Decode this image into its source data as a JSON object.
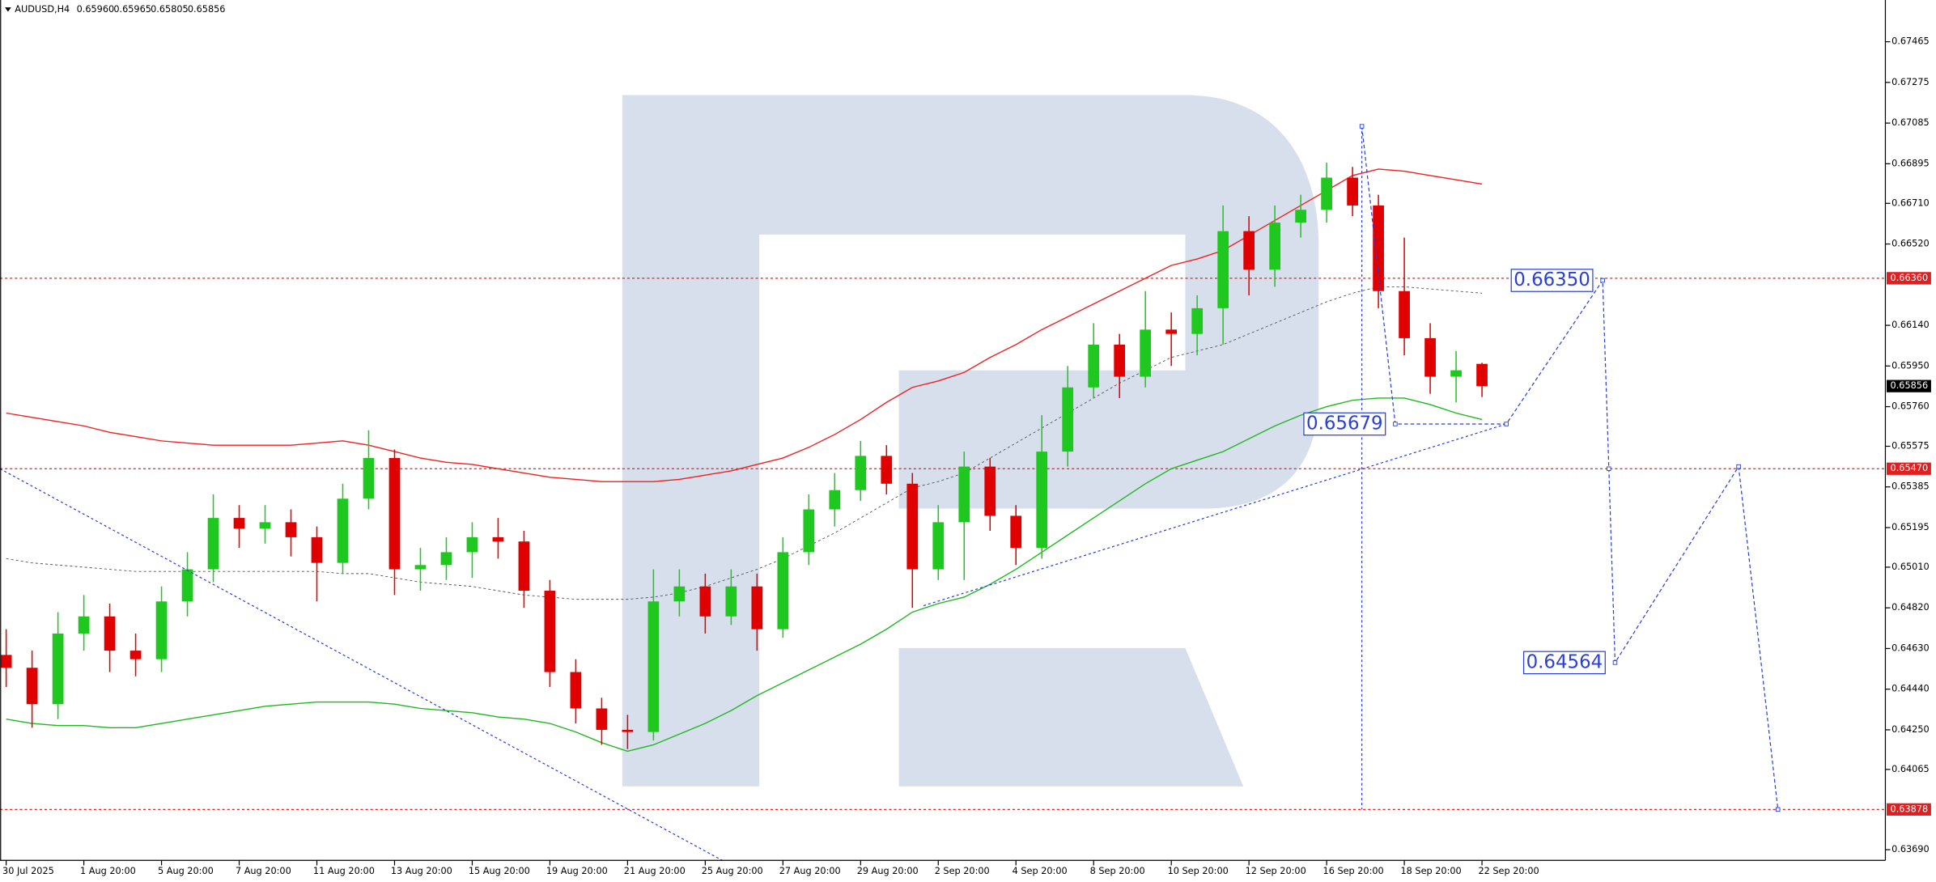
{
  "chart_data": {
    "type": "candlestick",
    "title": "AUDUSD,H4",
    "header_values": [
      "0.65960",
      "0.65965",
      "0.65805",
      "0.65856"
    ],
    "up_color": "#1fc81f",
    "down_color": "#e00000",
    "categories": [
      "30 Jul 2025",
      null,
      null,
      "1 Aug 20:00",
      null,
      null,
      "5 Aug 20:00",
      null,
      null,
      "7 Aug 20:00",
      null,
      null,
      "11 Aug 20:00",
      null,
      null,
      "13 Aug 20:00",
      null,
      null,
      "15 Aug 20:00",
      null,
      null,
      "19 Aug 20:00",
      null,
      null,
      "21 Aug 20:00",
      null,
      null,
      "25 Aug 20:00",
      null,
      null,
      "27 Aug 20:00",
      null,
      null,
      "29 Aug 20:00",
      null,
      null,
      "2 Sep 20:00",
      null,
      null,
      "4 Sep 20:00",
      null,
      null,
      "8 Sep 20:00",
      null,
      null,
      "10 Sep 20:00",
      null,
      null,
      "12 Sep 20:00",
      null,
      null,
      "16 Sep 20:00",
      null,
      null,
      "18 Sep 20:00",
      null,
      null,
      "22 Sep 20:00"
    ],
    "open": [
      0.646,
      0.6454,
      0.6437,
      0.647,
      0.6478,
      0.6462,
      0.6458,
      0.6485,
      0.65,
      0.6524,
      0.6519,
      0.6522,
      0.6515,
      0.6503,
      0.6533,
      0.6552,
      0.65,
      0.6502,
      0.6508,
      0.6515,
      0.6513,
      0.649,
      0.6452,
      0.6435,
      0.6425,
      0.6424,
      0.6485,
      0.6492,
      0.6478,
      0.6492,
      0.6472,
      0.6508,
      0.6528,
      0.6537,
      0.6553,
      0.654,
      0.65,
      0.6522,
      0.6548,
      0.6525,
      0.651,
      0.6555,
      0.6585,
      0.6605,
      0.659,
      0.6612,
      0.661,
      0.6622,
      0.6658,
      0.664,
      0.6662,
      0.6668,
      0.6683,
      0.667,
      0.663,
      0.6608,
      0.659,
      0.6596
    ],
    "high": [
      0.6472,
      0.6462,
      0.648,
      0.6488,
      0.6484,
      0.647,
      0.6492,
      0.6508,
      0.6535,
      0.653,
      0.653,
      0.6528,
      0.652,
      0.654,
      0.6565,
      0.6556,
      0.651,
      0.6515,
      0.6522,
      0.6524,
      0.6518,
      0.6495,
      0.6458,
      0.644,
      0.6432,
      0.65,
      0.65,
      0.6498,
      0.65,
      0.6498,
      0.6515,
      0.6535,
      0.6545,
      0.656,
      0.6558,
      0.6545,
      0.653,
      0.6555,
      0.6552,
      0.653,
      0.6572,
      0.6595,
      0.6615,
      0.661,
      0.663,
      0.662,
      0.6628,
      0.667,
      0.6665,
      0.667,
      0.6675,
      0.669,
      0.6688,
      0.6675,
      0.6655,
      0.6615,
      0.6602,
      0.65965
    ],
    "low": [
      0.6445,
      0.6426,
      0.643,
      0.6462,
      0.6452,
      0.645,
      0.6452,
      0.6478,
      0.6494,
      0.651,
      0.6512,
      0.6506,
      0.6485,
      0.6498,
      0.6528,
      0.6488,
      0.649,
      0.6495,
      0.6496,
      0.6505,
      0.6482,
      0.6445,
      0.6428,
      0.6418,
      0.6416,
      0.642,
      0.6478,
      0.647,
      0.6474,
      0.6462,
      0.6468,
      0.6502,
      0.652,
      0.6532,
      0.6535,
      0.6482,
      0.6495,
      0.6495,
      0.6518,
      0.6502,
      0.6505,
      0.6548,
      0.658,
      0.658,
      0.6585,
      0.6595,
      0.66,
      0.6605,
      0.6628,
      0.6632,
      0.6655,
      0.6662,
      0.6665,
      0.6622,
      0.66,
      0.6582,
      0.6578,
      0.65805
    ],
    "close": [
      0.6454,
      0.6437,
      0.647,
      0.6478,
      0.6462,
      0.6458,
      0.6485,
      0.65,
      0.6524,
      0.6519,
      0.6522,
      0.6515,
      0.6503,
      0.6533,
      0.6552,
      0.65,
      0.6502,
      0.6508,
      0.6515,
      0.6513,
      0.649,
      0.6452,
      0.6435,
      0.6425,
      0.6424,
      0.6485,
      0.6492,
      0.6478,
      0.6492,
      0.6472,
      0.6508,
      0.6528,
      0.6537,
      0.6553,
      0.654,
      0.65,
      0.6522,
      0.6548,
      0.6525,
      0.651,
      0.6555,
      0.6585,
      0.6605,
      0.659,
      0.6612,
      0.661,
      0.6622,
      0.6658,
      0.664,
      0.6662,
      0.6668,
      0.6683,
      0.667,
      0.663,
      0.6608,
      0.659,
      0.6593,
      0.65856
    ],
    "lines": [
      {
        "color": "#ee2020",
        "dashed": false,
        "values": [
          0.6573,
          0.6571,
          0.6569,
          0.6567,
          0.6564,
          0.6562,
          0.656,
          0.6559,
          0.6558,
          0.6558,
          0.6558,
          0.6558,
          0.6559,
          0.656,
          0.6558,
          0.6555,
          0.6552,
          0.655,
          0.6549,
          0.6547,
          0.6545,
          0.6543,
          0.6542,
          0.6541,
          0.6541,
          0.6541,
          0.6542,
          0.6544,
          0.6546,
          0.6549,
          0.6552,
          0.6557,
          0.6563,
          0.657,
          0.6578,
          0.6585,
          0.6588,
          0.6592,
          0.6599,
          0.6605,
          0.6612,
          0.6618,
          0.6624,
          0.663,
          0.6636,
          0.6642,
          0.6645,
          0.6649,
          0.6656,
          0.6663,
          0.667,
          0.6677,
          0.6684,
          0.6687,
          0.6686,
          0.6684,
          0.6682,
          0.668
        ]
      },
      {
        "color": "#1eb81e",
        "dashed": false,
        "values": [
          0.643,
          0.6428,
          0.6427,
          0.6427,
          0.6426,
          0.6426,
          0.6428,
          0.643,
          0.6432,
          0.6434,
          0.6436,
          0.6437,
          0.6438,
          0.6438,
          0.6438,
          0.6437,
          0.6435,
          0.6434,
          0.6433,
          0.6431,
          0.643,
          0.6428,
          0.6424,
          0.6419,
          0.6415,
          0.6418,
          0.6423,
          0.6428,
          0.6434,
          0.6441,
          0.6447,
          0.6453,
          0.6459,
          0.6465,
          0.6472,
          0.648,
          0.6484,
          0.6487,
          0.6493,
          0.65,
          0.6508,
          0.6516,
          0.6524,
          0.6532,
          0.654,
          0.6547,
          0.6551,
          0.6555,
          0.6561,
          0.6567,
          0.6572,
          0.6576,
          0.6579,
          0.658,
          0.658,
          0.6577,
          0.6573,
          0.657
        ]
      },
      {
        "color": "#555555",
        "dashed": true,
        "values": [
          0.6505,
          0.6503,
          0.6502,
          0.6501,
          0.65,
          0.6499,
          0.6499,
          0.6499,
          0.6499,
          0.6499,
          0.6499,
          0.6499,
          0.6499,
          0.6498,
          0.6498,
          0.6496,
          0.6494,
          0.6493,
          0.6492,
          0.649,
          0.6488,
          0.6487,
          0.6486,
          0.6486,
          0.6486,
          0.6487,
          0.6489,
          0.6492,
          0.6496,
          0.65,
          0.6505,
          0.6511,
          0.6517,
          0.6524,
          0.6531,
          0.6538,
          0.6541,
          0.6545,
          0.6552,
          0.6559,
          0.6566,
          0.6573,
          0.658,
          0.6587,
          0.6593,
          0.6599,
          0.6602,
          0.6605,
          0.661,
          0.6615,
          0.662,
          0.6625,
          0.6629,
          0.6632,
          0.6632,
          0.6631,
          0.663,
          0.6629
        ]
      }
    ],
    "trend_color": "#2a3fd6",
    "trendlines": [
      {
        "x": [
          -0.24,
          27.66
        ],
        "values": [
          0.6547,
          0.6364
        ]
      },
      {
        "x": [
          35.43,
          57.94
        ],
        "values": [
          0.6483,
          0.65679
        ]
      },
      {
        "x": [
          52.36,
          52.36
        ],
        "values": [
          0.6707,
          0.63878
        ]
      }
    ],
    "forecast": {
      "x": [
        52.36,
        53.65,
        57.94,
        61.66,
        61.9,
        62.14,
        66.91,
        68.43
      ],
      "values": [
        0.6707,
        0.65679,
        0.65679,
        0.6635,
        0.6547,
        0.64564,
        0.6548,
        0.63878
      ],
      "value_labels": [
        null,
        "0.65679",
        null,
        "0.66350",
        null,
        "0.64564",
        null,
        null
      ]
    },
    "level_color": "#e02020",
    "levels": [
      {
        "value": 0.6636,
        "label": "0.66360"
      },
      {
        "value": 0.6547,
        "label": "0.65470"
      },
      {
        "value": 0.63878,
        "label": "0.63878"
      }
    ],
    "last_price": {
      "value": 0.65856,
      "label": "0.65856"
    },
    "ylim": [
      0.6364,
      0.6766
    ],
    "yticks": [
      0.67465,
      0.67275,
      0.67085,
      0.66895,
      {
        "value": 0.6671,
        "label": "0.66710"
      },
      {
        "value": 0.6652,
        "label": "0.66520"
      },
      {
        "value": 0.6614,
        "label": "0.66140"
      },
      {
        "value": 0.6595,
        "label": "0.65950"
      },
      {
        "value": 0.6576,
        "label": "0.65760"
      },
      0.65575,
      0.65385,
      0.65195,
      {
        "value": 0.6501,
        "label": "0.65010"
      },
      {
        "value": 0.6482,
        "label": "0.64820"
      },
      {
        "value": 0.6463,
        "label": "0.64630"
      },
      {
        "value": 0.6444,
        "label": "0.64440"
      },
      {
        "value": 0.6425,
        "label": "0.64250"
      },
      0.64065,
      {
        "value": 0.6369,
        "label": "0.63690"
      }
    ]
  }
}
